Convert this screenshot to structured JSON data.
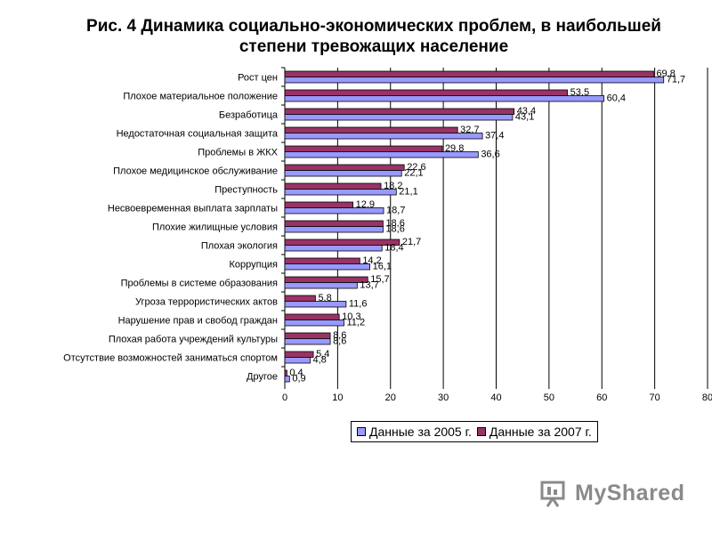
{
  "colors": {
    "s2005": "#9999ff",
    "s2007": "#993366",
    "grid": "#000000"
  },
  "watermark": {
    "text": "MyShared",
    "icon": "presentation-screen-icon"
  },
  "chart_data": {
    "type": "bar",
    "orientation": "horizontal",
    "title": "Рис. 4   Динамика социально-экономических проблем, в наибольшей\nстепени тревожащих население",
    "xlim": [
      0,
      80
    ],
    "xticks": [
      0,
      10,
      20,
      30,
      40,
      50,
      60,
      70,
      80
    ],
    "grid": true,
    "legend_position": "bottom",
    "categories": [
      "Рост цен",
      "Плохое материальное положение",
      "Безработица",
      "Недостаточная социальная защита",
      "Проблемы в ЖКХ",
      "Плохое медицинское обслуживание",
      "Преступность",
      "Несвоевременная выплата зарплаты",
      "Плохие жилищные условия",
      "Плохая экология",
      "Коррупция",
      "Проблемы в системе образования",
      "Угроза террористических актов",
      "Нарушение прав и свобод граждан",
      "Плохая работа учреждений культуры",
      "Отсутствие возможностей заниматься спортом",
      "Другое"
    ],
    "series": [
      {
        "name": "Данные за 2005 г.",
        "values": [
          71.7,
          60.4,
          43.1,
          37.4,
          36.6,
          22.1,
          21.1,
          18.7,
          18.6,
          18.4,
          16.1,
          13.7,
          11.6,
          11.2,
          8.6,
          4.8,
          0.9
        ]
      },
      {
        "name": "Данные за 2007 г.",
        "values": [
          69.8,
          53.5,
          43.4,
          32.7,
          29.8,
          22.6,
          18.2,
          12.9,
          18.6,
          21.7,
          14.2,
          15.7,
          5.8,
          10.3,
          8.6,
          5.4,
          0.4
        ]
      }
    ]
  }
}
